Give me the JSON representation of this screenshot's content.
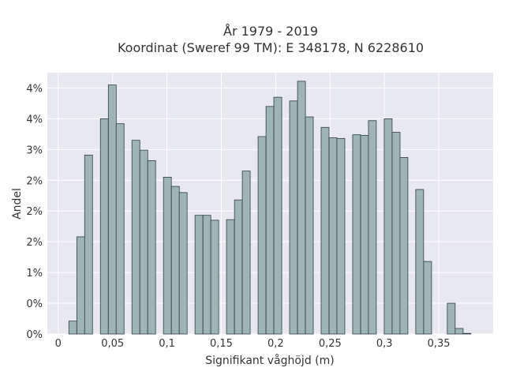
{
  "chart_data": {
    "type": "bar",
    "title": "År 1979 - 2019",
    "subtitle": "Koordinat (Sweref 99 TM): E 348178, N 6228610",
    "xlabel": "Signifikant våghöjd (m)",
    "ylabel": "Andel",
    "xlim": [
      -0.01,
      0.4
    ],
    "ylim": [
      0,
      0.0425
    ],
    "grid": true,
    "x_ticks": [
      {
        "value": 0,
        "label": "0"
      },
      {
        "value": 0.05,
        "label": "0,05"
      },
      {
        "value": 0.1,
        "label": "0,1"
      },
      {
        "value": 0.15,
        "label": "0,15"
      },
      {
        "value": 0.2,
        "label": "0,2"
      },
      {
        "value": 0.25,
        "label": "0,25"
      },
      {
        "value": 0.3,
        "label": "0,3"
      },
      {
        "value": 0.35,
        "label": "0,35"
      }
    ],
    "y_ticks": [
      {
        "value": 0,
        "label": "0%"
      },
      {
        "value": 0.005,
        "label": "0%"
      },
      {
        "value": 0.01,
        "label": "1%"
      },
      {
        "value": 0.015,
        "label": "2%"
      },
      {
        "value": 0.02,
        "label": "2%"
      },
      {
        "value": 0.025,
        "label": "2%"
      },
      {
        "value": 0.03,
        "label": "3%"
      },
      {
        "value": 0.035,
        "label": "4%"
      },
      {
        "value": 0.04,
        "label": "4%"
      }
    ],
    "bin_width": 0.00725,
    "bin_edges_start": [
      0.0098,
      0.0171,
      0.0243,
      0.0388,
      0.0461,
      0.0533,
      0.0678,
      0.0751,
      0.0823,
      0.0968,
      0.1041,
      0.1113,
      0.1258,
      0.1331,
      0.1403,
      0.1548,
      0.1621,
      0.1693,
      0.1838,
      0.1911,
      0.1983,
      0.2128,
      0.2201,
      0.2273,
      0.2418,
      0.2491,
      0.2563,
      0.2708,
      0.2781,
      0.2853,
      0.2998,
      0.3071,
      0.3143,
      0.3288,
      0.3361,
      0.3433,
      0.3578,
      0.3651,
      0.3723
    ],
    "values": [
      0.0021,
      0.0158,
      0.0291,
      0.035,
      0.0405,
      0.0342,
      0.0315,
      0.0299,
      0.0282,
      0.0255,
      0.024,
      0.023,
      0.0193,
      0.0193,
      0.0185,
      0.0186,
      0.0218,
      0.0265,
      0.0321,
      0.037,
      0.0385,
      0.0379,
      0.0411,
      0.0353,
      0.0336,
      0.0319,
      0.0318,
      0.0324,
      0.0323,
      0.0347,
      0.035,
      0.0328,
      0.0287,
      0.0235,
      0.0118,
      0.0,
      0.005,
      0.0009,
      0.0001
    ],
    "colors": {
      "bar_fill": "#9fb5b5",
      "bar_stroke": "#2f3f3f",
      "plot_bg": "#e8e8f0",
      "grid": "#ffffff"
    }
  }
}
